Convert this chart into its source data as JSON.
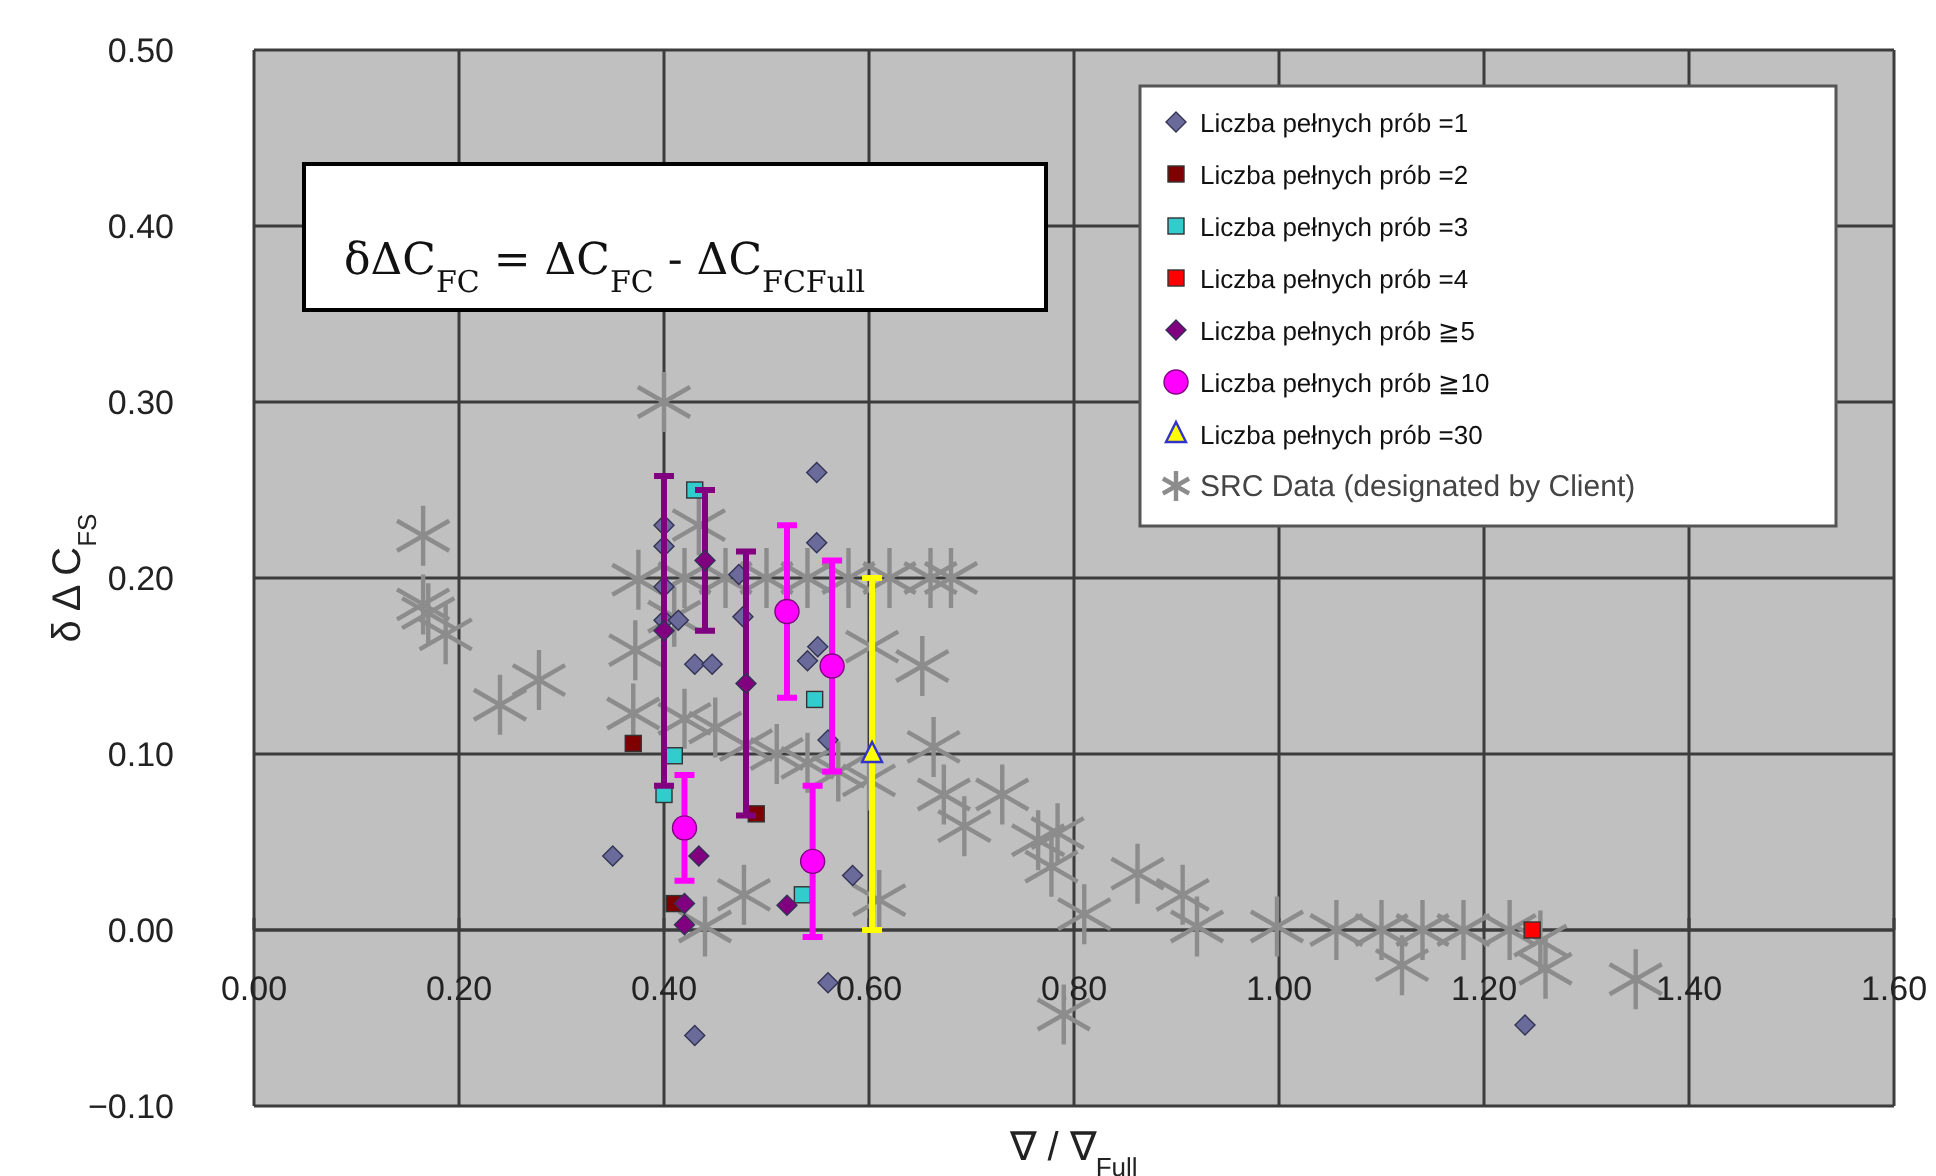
{
  "chart_data": {
    "type": "scatter",
    "xlabel": "∇ / ∇$_{Full}$",
    "ylabel": "δ Δ C$_{FS}$",
    "annotations": [
      "δΔC$_{FC}$ = ΔC$_{FC}$ - ΔC$_{FCFull}$"
    ],
    "xlim": [
      0,
      1.6
    ],
    "xticks": [
      {
        "value": 0,
        "label": "0.00"
      },
      {
        "value": 0.2,
        "label": "0.20"
      },
      {
        "value": 0.4,
        "label": "0.40"
      },
      {
        "value": 0.6,
        "label": "0.60"
      },
      {
        "value": 0.8,
        "label": "0.80"
      },
      {
        "value": 1,
        "label": "1.00"
      },
      {
        "value": 1.2,
        "label": "1.20"
      },
      {
        "value": 1.4,
        "label": "1.40"
      },
      {
        "value": 1.6,
        "label": "1.60"
      }
    ],
    "ylim": [
      -0.1,
      0.5
    ],
    "yticks": [
      {
        "value": -0.1,
        "label": "−0.10"
      },
      {
        "value": 0,
        "label": "0.00"
      },
      {
        "value": 0.1,
        "label": "0.10"
      },
      {
        "value": 0.2,
        "label": "0.20"
      },
      {
        "value": 0.3,
        "label": "0.30"
      },
      {
        "value": 0.4,
        "label": "0.40"
      },
      {
        "value": 0.5,
        "label": "0.50"
      }
    ],
    "grid": true,
    "legend": "top right",
    "series": [
      {
        "name": "SRC Data (designated by Client)",
        "color": "#8c8c8c",
        "marker": "cross",
        "x": [
          0.165,
          0.165,
          0.17,
          0.187,
          0.24,
          0.278,
          0.4,
          0.375,
          0.372,
          0.37,
          0.41,
          0.42,
          0.434,
          0.45,
          0.48,
          0.51,
          0.54,
          0.57,
          0.6,
          0.42,
          0.46,
          0.5,
          0.54,
          0.58,
          0.62,
          0.66,
          0.68,
          0.652,
          0.603,
          0.663,
          0.673,
          0.73,
          0.693,
          0.765,
          0.778,
          0.61,
          0.478,
          0.44,
          0.784,
          0.862,
          0.81,
          0.906,
          0.92,
          0.998,
          1.056,
          1.1,
          1.14,
          1.18,
          1.225,
          1.255,
          1.348,
          1.12,
          1.26,
          0.79
        ],
        "values": [
          0.224,
          0.185,
          0.18,
          0.168,
          0.128,
          0.142,
          0.3,
          0.199,
          0.159,
          0.123,
          0.178,
          0.12,
          0.23,
          0.115,
          0.105,
          0.1,
          0.095,
          0.09,
          0.085,
          0.2,
          0.2,
          0.2,
          0.2,
          0.2,
          0.2,
          0.2,
          0.2,
          0.15,
          0.161,
          0.104,
          0.077,
          0.077,
          0.059,
          0.051,
          0.036,
          0.017,
          0.02,
          0.002,
          0.055,
          0.032,
          0.009,
          0.02,
          0.002,
          0.002,
          0,
          0,
          0,
          0,
          0,
          -0.006,
          -0.028,
          -0.02,
          -0.022,
          -0.048
        ]
      },
      {
        "name": "Liczba pełnych prób =1",
        "color": "#6b6b9b",
        "marker": "diamond",
        "x": [
          0.4,
          0.4,
          0.4,
          0.4,
          0.414,
          0.43,
          0.447,
          0.35,
          0.549,
          0.549,
          0.477,
          0.473,
          0.55,
          0.54,
          0.56,
          0.584,
          0.43,
          0.56,
          1.24
        ],
        "values": [
          0.23,
          0.218,
          0.195,
          0.176,
          0.176,
          0.151,
          0.151,
          0.042,
          0.26,
          0.22,
          0.178,
          0.202,
          0.161,
          0.153,
          0.108,
          0.031,
          -0.06,
          -0.03,
          -0.054
        ]
      },
      {
        "name": "Liczba pełnych prób =2",
        "color": "#7f0000",
        "marker": "square",
        "x": [
          0.37,
          0.41,
          0.49
        ],
        "values": [
          0.106,
          0.015,
          0.066
        ]
      },
      {
        "name": "Liczba pełnych prób =3",
        "color": "#33cccc",
        "marker": "square",
        "x": [
          0.43,
          0.41,
          0.4,
          0.547,
          0.535
        ],
        "values": [
          0.25,
          0.099,
          0.077,
          0.131,
          0.02
        ]
      },
      {
        "name": "Liczba pełnych prób =4",
        "color": "#ff0000",
        "marker": "square",
        "x": [
          1.247
        ],
        "values": [
          0.0
        ]
      },
      {
        "name": "Liczba pełnych prób ≧5",
        "color": "#800080",
        "marker": "diamond",
        "x": [
          0.4,
          0.44,
          0.48,
          0.434,
          0.42,
          0.42,
          0.52
        ],
        "values": [
          0.17,
          0.21,
          0.14,
          0.042,
          0.015,
          0.003,
          0.014
        ],
        "errors": [
          0.088,
          0.04,
          0.075,
          null,
          null,
          null,
          null
        ]
      },
      {
        "name": "Liczba pełnych prób ≧10",
        "color": "#ff00ff",
        "marker": "circle",
        "x": [
          0.42,
          0.52,
          0.564,
          0.545
        ],
        "values": [
          0.058,
          0.181,
          0.15,
          0.039
        ],
        "errors": [
          0.03,
          0.049,
          0.06,
          0.043
        ]
      },
      {
        "name": "Liczba pełnych prób =30",
        "color": "#ffff00",
        "marker": "triangle",
        "x": [
          0.603
        ],
        "values": [
          0.1
        ],
        "errors": [
          0.1
        ]
      }
    ]
  }
}
